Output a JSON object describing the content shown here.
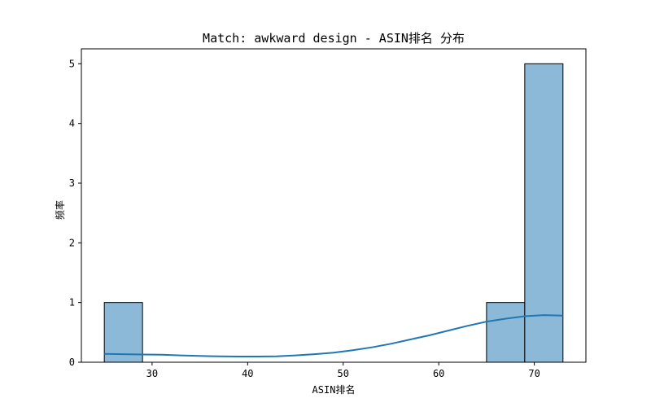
{
  "chart_data": {
    "type": "bar",
    "title": "Match: awkward design - ASIN排名 分布",
    "xlabel": "ASIN排名",
    "ylabel": "频率",
    "xlim": [
      22.6,
      75.4
    ],
    "ylim": [
      0,
      5.25
    ],
    "xticks": [
      30,
      40,
      50,
      60,
      70
    ],
    "yticks": [
      0,
      1,
      2,
      3,
      4,
      5
    ],
    "bins": [
      {
        "x0": 25,
        "x1": 29,
        "count": 1
      },
      {
        "x0": 65,
        "x1": 69,
        "count": 1
      },
      {
        "x0": 69,
        "x1": 73,
        "count": 5
      }
    ],
    "kde": {
      "x": [
        25,
        27,
        29,
        31,
        33,
        35,
        37,
        39,
        41,
        43,
        45,
        47,
        49,
        51,
        53,
        55,
        57,
        59,
        61,
        63,
        65,
        67,
        69,
        71,
        73
      ],
      "y": [
        0.14,
        0.135,
        0.13,
        0.125,
        0.115,
        0.105,
        0.1,
        0.095,
        0.095,
        0.1,
        0.115,
        0.135,
        0.16,
        0.2,
        0.25,
        0.31,
        0.38,
        0.45,
        0.53,
        0.61,
        0.68,
        0.73,
        0.77,
        0.79,
        0.78
      ]
    },
    "colors": {
      "bar": "#8cb9d8",
      "kde": "#1f77b4"
    },
    "grid": false
  }
}
